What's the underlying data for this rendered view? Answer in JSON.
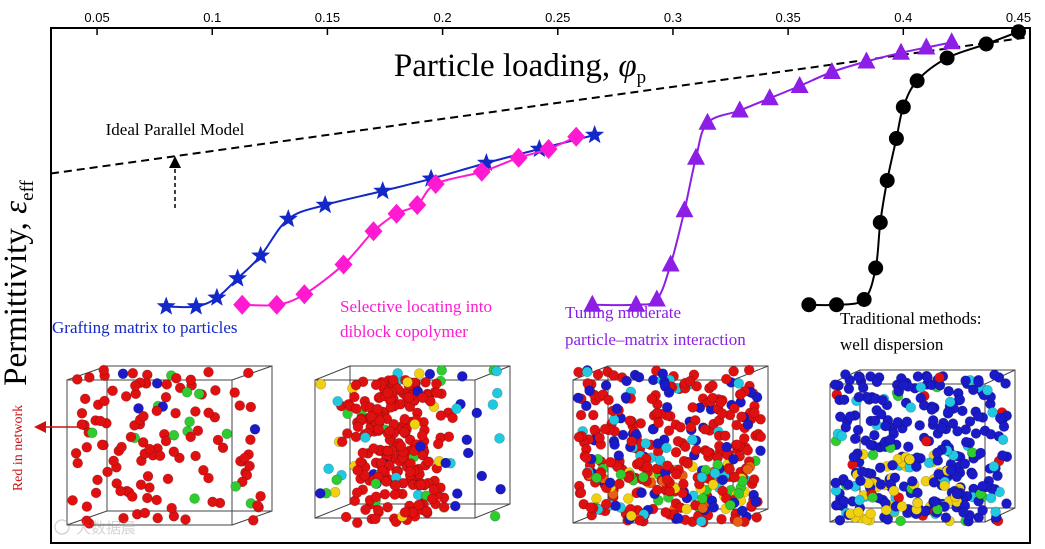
{
  "chart_data": {
    "type": "line",
    "title": "",
    "xlabel": "Particle loading, φp",
    "xlabel_main": "Particle loading, ",
    "xlabel_symbol": "φ",
    "xlabel_sub": "p",
    "ylabel": "Permittivity, εeff",
    "ylabel_main": "Permittivity, ",
    "ylabel_symbol": "ε",
    "ylabel_sub": "eff",
    "xaxis_position": "top",
    "xlim": [
      0.03,
      0.455
    ],
    "ylim": [
      0,
      10
    ],
    "x_ticks": [
      0.05,
      0.1,
      0.15,
      0.2,
      0.25,
      0.3,
      0.35,
      0.4,
      0.45
    ],
    "x_tick_labels": [
      "0.05",
      "0.1",
      "0.15",
      "0.2",
      "0.25",
      "0.3",
      "0.35",
      "0.4",
      "0.45"
    ],
    "reference_line": {
      "name": "Ideal Parallel Model",
      "style": "dashed",
      "color": "#000000",
      "x": [
        0.03,
        0.455
      ],
      "y": [
        5.9,
        9.8
      ]
    },
    "series": [
      {
        "name": "Grafting matrix to particles",
        "color": "#1428c8",
        "marker": "star",
        "x": [
          0.08,
          0.093,
          0.102,
          0.111,
          0.121,
          0.133,
          0.149,
          0.174,
          0.195,
          0.219,
          0.242,
          0.266
        ],
        "y": [
          2.1,
          2.1,
          2.35,
          2.9,
          3.55,
          4.6,
          5.0,
          5.4,
          5.75,
          6.2,
          6.6,
          7.0
        ]
      },
      {
        "name": "Selective locating into diblock copolymer",
        "color": "#ff1ad2",
        "marker": "diamond",
        "x": [
          0.113,
          0.128,
          0.14,
          0.157,
          0.17,
          0.18,
          0.189,
          0.197,
          0.217,
          0.233,
          0.246,
          0.258
        ],
        "y": [
          2.15,
          2.15,
          2.45,
          3.3,
          4.25,
          4.75,
          5.0,
          5.6,
          5.95,
          6.35,
          6.6,
          6.95
        ]
      },
      {
        "name": "Tuning moderate particle–matrix interaction",
        "color": "#8c1ee6",
        "marker": "triangle",
        "x": [
          0.265,
          0.284,
          0.293,
          0.299,
          0.305,
          0.31,
          0.315,
          0.329,
          0.342,
          0.355,
          0.369,
          0.384,
          0.399,
          0.41,
          0.421
        ],
        "y": [
          2.15,
          2.15,
          2.3,
          3.3,
          4.85,
          6.35,
          7.35,
          7.7,
          8.05,
          8.4,
          8.8,
          9.1,
          9.35,
          9.5,
          9.65
        ]
      },
      {
        "name": "Traditional methods: well dispersion",
        "color": "#000000",
        "marker": "circle",
        "x": [
          0.359,
          0.371,
          0.383,
          0.388,
          0.39,
          0.393,
          0.397,
          0.4,
          0.406,
          0.419,
          0.436,
          0.45
        ],
        "y": [
          2.15,
          2.15,
          2.3,
          3.2,
          4.5,
          5.7,
          6.9,
          7.8,
          8.55,
          9.2,
          9.6,
          9.95
        ]
      }
    ],
    "annotations": [
      {
        "id": "parallel",
        "text": "Ideal Parallel Model"
      },
      {
        "id": "grafting",
        "text": "Grafting matrix to particles"
      },
      {
        "id": "selective1",
        "text": "Selective locating into"
      },
      {
        "id": "selective2",
        "text": "diblock copolymer"
      },
      {
        "id": "tuning1",
        "text": "Tuning moderate"
      },
      {
        "id": "tuning2",
        "text": "particle–matrix interaction"
      },
      {
        "id": "traditional1",
        "text": "Traditional methods:"
      },
      {
        "id": "traditional2",
        "text": "well dispersion"
      },
      {
        "id": "red",
        "text": "Red in network"
      }
    ],
    "watermark_text": "大数据晨",
    "particle_colors": {
      "red": "#e01010",
      "blue": "#1a1ac8",
      "green": "#2ecc2e",
      "yellow": "#f0d010",
      "cyan": "#20c8e0",
      "orange": "#e86010",
      "annotation_red": "#d01010"
    }
  }
}
